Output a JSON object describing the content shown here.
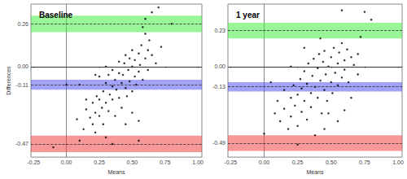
{
  "chart_data": [
    {
      "type": "scatter",
      "title": "Baseline",
      "x_label": "Means",
      "y_label": "Differences",
      "color": "#000000",
      "marker": "circle",
      "x": [
        -0.1,
        0.0,
        0.08,
        0.1,
        0.13,
        0.15,
        0.15,
        0.18,
        0.2,
        0.2,
        0.22,
        0.22,
        0.23,
        0.25,
        0.25,
        0.27,
        0.28,
        0.28,
        0.3,
        0.3,
        0.3,
        0.32,
        0.32,
        0.33,
        0.35,
        0.35,
        0.35,
        0.37,
        0.37,
        0.38,
        0.4,
        0.4,
        0.4,
        0.42,
        0.42,
        0.43,
        0.44,
        0.45,
        0.45,
        0.46,
        0.47,
        0.48,
        0.48,
        0.5,
        0.5,
        0.5,
        0.52,
        0.52,
        0.53,
        0.55,
        0.55,
        0.56,
        0.57,
        0.58,
        0.6,
        0.6,
        0.62,
        0.62,
        0.63,
        0.65,
        0.55,
        0.55,
        0.6,
        0.65,
        0.7,
        0.72,
        0.8,
        0.25,
        0.1,
        0.35,
        0.45,
        0.5,
        0.58,
        0.3,
        0.68,
        0.22
      ],
      "y": [
        -0.49,
        -0.11,
        -0.32,
        -0.45,
        -0.38,
        -0.26,
        -0.2,
        -0.31,
        -0.35,
        -0.22,
        -0.28,
        -0.4,
        -0.18,
        -0.2,
        -0.3,
        -0.25,
        -0.15,
        -0.35,
        -0.1,
        -0.22,
        -0.43,
        -0.05,
        -0.27,
        -0.17,
        -0.12,
        -0.2,
        -0.02,
        -0.08,
        -0.3,
        -0.14,
        -0.04,
        -0.19,
        0.03,
        -0.1,
        -0.25,
        -0.05,
        0.02,
        -0.13,
        0.07,
        -0.18,
        -0.02,
        0.05,
        -0.09,
        0.0,
        -0.15,
        0.1,
        -0.06,
        0.04,
        -0.11,
        0.08,
        -0.03,
        0.01,
        0.13,
        -0.08,
        0.05,
        0.2,
        -0.02,
        0.1,
        0.16,
        0.07,
        -0.33,
        -0.45,
        0.29,
        0.33,
        0.36,
        0.12,
        0.26,
        -0.06,
        -0.11,
        -0.47,
        -0.35,
        -0.28,
        0.24,
        0.0,
        0.02,
        -0.05
      ],
      "mean_difference": -0.11,
      "limits_of_agreement": [
        -0.47,
        0.26
      ],
      "bands": [
        {
          "from": 0.21,
          "to": 0.31,
          "color": "#44ee44"
        },
        {
          "from": -0.14,
          "to": -0.08,
          "color": "#5555ee"
        },
        {
          "from": -0.52,
          "to": -0.42,
          "color": "#ee4444"
        }
      ],
      "xlim": [
        -0.27,
        1.03
      ],
      "xticks": [
        -0.25,
        {
          "value": 0,
          "label": "0.00"
        },
        0.25,
        {
          "value": 0.5,
          "label": "0.50"
        },
        0.75,
        {
          "value": 1,
          "label": "1.00"
        }
      ],
      "ylim": [
        -0.55,
        0.38
      ],
      "yticks": [
        -0.47,
        -0.11,
        {
          "value": 0,
          "label": "0.00"
        },
        0.26
      ],
      "grid": false
    },
    {
      "type": "scatter",
      "title": "1 year",
      "x_label": "Means",
      "color": "#000000",
      "marker": "circle",
      "x": [
        0.0,
        0.05,
        0.08,
        0.1,
        0.12,
        0.15,
        0.15,
        0.18,
        0.2,
        0.2,
        0.22,
        0.23,
        0.25,
        0.25,
        0.27,
        0.28,
        0.28,
        0.3,
        0.3,
        0.32,
        0.32,
        0.33,
        0.35,
        0.35,
        0.36,
        0.37,
        0.38,
        0.4,
        0.4,
        0.41,
        0.42,
        0.43,
        0.44,
        0.45,
        0.45,
        0.46,
        0.47,
        0.48,
        0.5,
        0.5,
        0.51,
        0.52,
        0.53,
        0.55,
        0.55,
        0.56,
        0.58,
        0.58,
        0.6,
        0.6,
        0.62,
        0.63,
        0.65,
        0.67,
        0.7,
        0.72,
        0.75,
        0.58,
        0.8,
        0.55,
        0.45,
        0.25,
        0.38,
        0.6,
        0.65,
        0.2,
        0.3,
        0.42,
        0.48,
        0.7
      ],
      "y": [
        -0.43,
        -0.1,
        -0.3,
        -0.22,
        -0.35,
        -0.27,
        -0.15,
        -0.4,
        -0.2,
        -0.32,
        -0.12,
        -0.25,
        -0.38,
        -0.18,
        -0.08,
        -0.29,
        -0.14,
        -0.22,
        -0.03,
        -0.34,
        -0.11,
        0.02,
        -0.17,
        -0.26,
        -0.06,
        0.05,
        -0.13,
        -0.2,
        -0.01,
        0.08,
        -0.09,
        -0.3,
        0.03,
        -0.15,
        0.1,
        -0.05,
        -0.22,
        0.0,
        -0.1,
        0.06,
        -0.17,
        0.12,
        -0.04,
        0.02,
        -0.12,
        0.09,
        -0.07,
        0.15,
        0.04,
        -0.02,
        0.11,
        -0.1,
        0.06,
        0.01,
        0.08,
        0.19,
        0.35,
        0.36,
        0.3,
        -0.35,
        -0.4,
        -0.5,
        -0.44,
        -0.28,
        -0.2,
        0.0,
        0.12,
        0.18,
        -0.3,
        -0.05
      ],
      "mean_difference": -0.13,
      "limits_of_agreement": [
        -0.49,
        0.23
      ],
      "bands": [
        {
          "from": 0.18,
          "to": 0.28,
          "color": "#44ee44"
        },
        {
          "from": -0.16,
          "to": -0.1,
          "color": "#5555ee"
        },
        {
          "from": -0.54,
          "to": -0.44,
          "color": "#ee4444"
        }
      ],
      "xlim": [
        -0.27,
        1.03
      ],
      "xticks": [
        -0.25,
        {
          "value": 0,
          "label": "0.00"
        },
        0.25,
        {
          "value": 0.5,
          "label": "0.50"
        },
        0.75,
        {
          "value": 1,
          "label": "1.00"
        }
      ],
      "ylim": [
        -0.58,
        0.4
      ],
      "yticks": [
        -0.49,
        -0.13,
        {
          "value": 0,
          "label": "0.00"
        },
        0.23
      ],
      "grid": false
    }
  ]
}
